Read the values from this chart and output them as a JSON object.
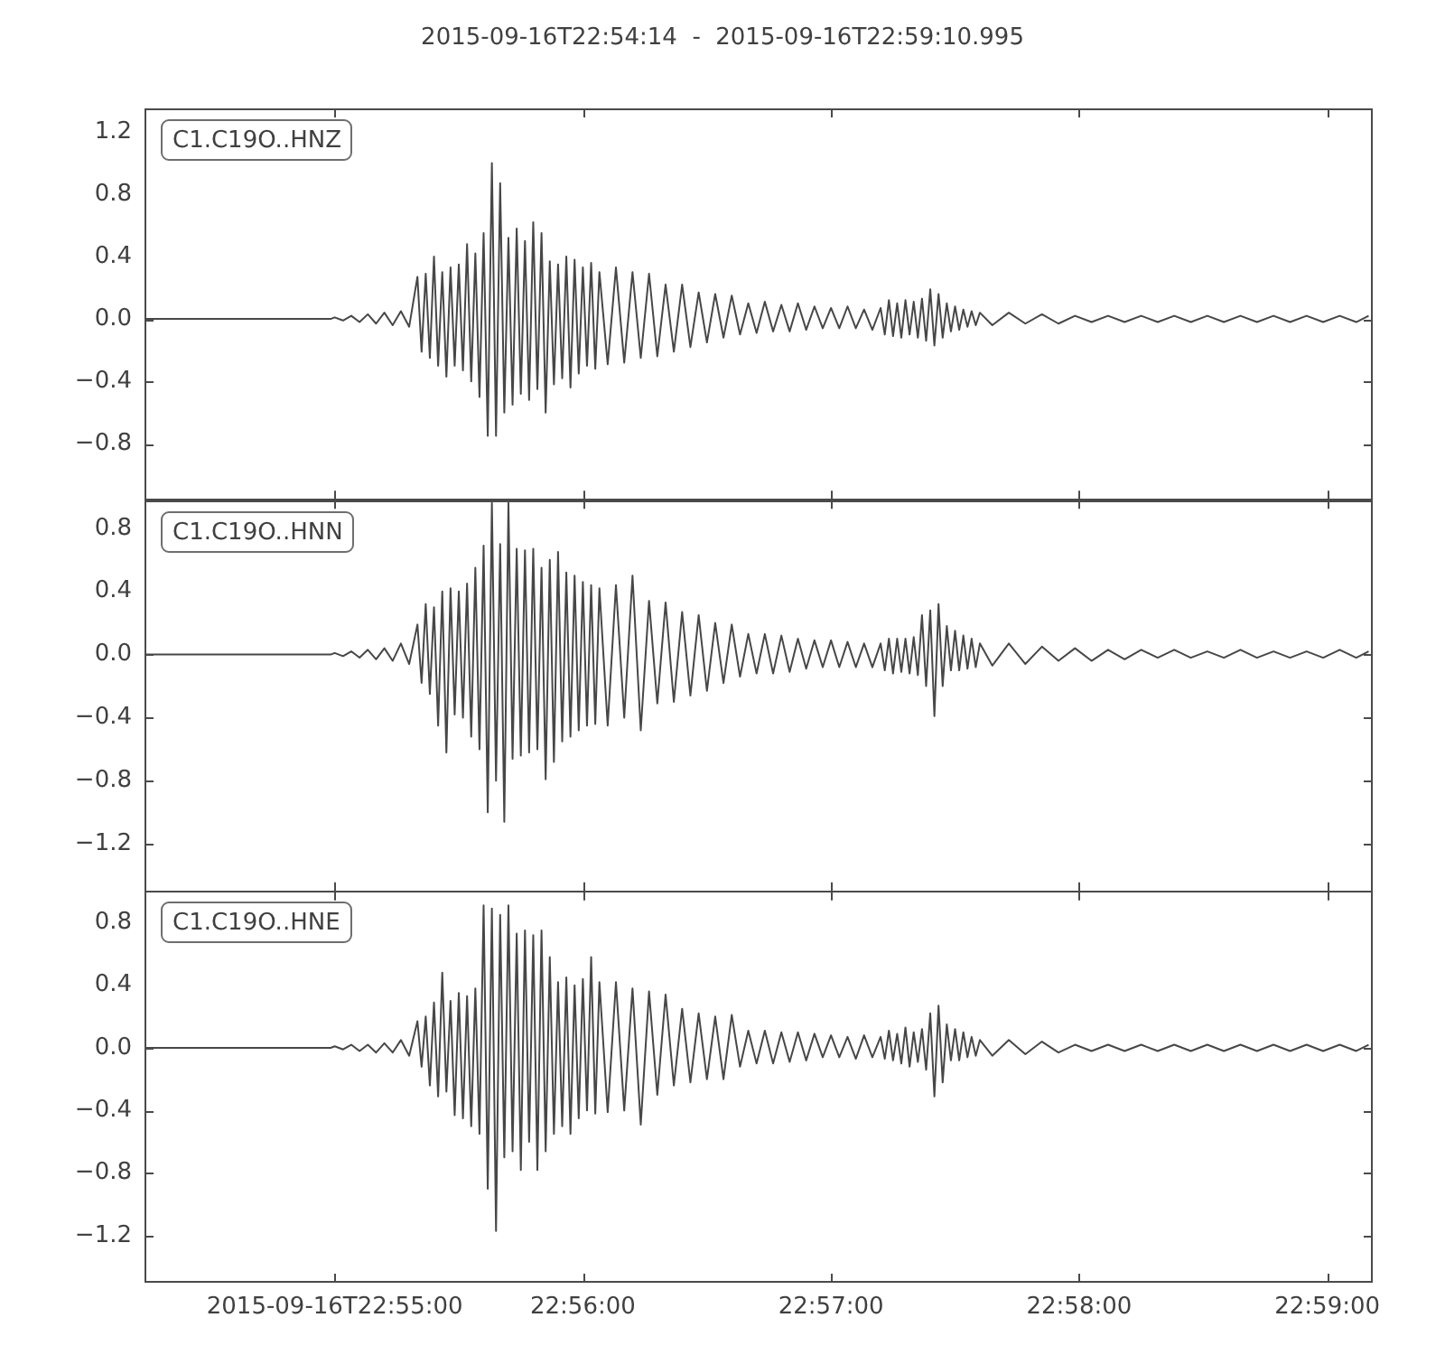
{
  "chart_data": [
    {
      "type": "line",
      "title": "2015-09-16T22:54:14  -  2015-09-16T22:59:10.995",
      "annotations": [
        "C1.C19O..HNZ"
      ],
      "color": "#474747",
      "x": [
        "2015-09-16T22:54:14",
        "2015-09-16T22:54:59",
        "2015-09-16T22:55:00",
        "2015-09-16T22:55:02",
        "2015-09-16T22:55:04",
        "2015-09-16T22:55:06",
        "2015-09-16T22:55:08",
        "2015-09-16T22:55:10",
        "2015-09-16T22:55:12",
        "2015-09-16T22:55:14",
        "2015-09-16T22:55:16",
        "2015-09-16T22:55:18",
        "2015-09-16T22:55:20",
        "2015-09-16T22:55:21",
        "2015-09-16T22:55:22",
        "2015-09-16T22:55:23",
        "2015-09-16T22:55:24",
        "2015-09-16T22:55:25",
        "2015-09-16T22:55:26",
        "2015-09-16T22:55:27",
        "2015-09-16T22:55:28",
        "2015-09-16T22:55:29",
        "2015-09-16T22:55:30",
        "2015-09-16T22:55:31",
        "2015-09-16T22:55:32",
        "2015-09-16T22:55:33",
        "2015-09-16T22:55:34",
        "2015-09-16T22:55:35",
        "2015-09-16T22:55:36",
        "2015-09-16T22:55:37",
        "2015-09-16T22:55:38",
        "2015-09-16T22:55:39",
        "2015-09-16T22:55:40",
        "2015-09-16T22:55:41",
        "2015-09-16T22:55:42",
        "2015-09-16T22:55:43",
        "2015-09-16T22:55:44",
        "2015-09-16T22:55:45",
        "2015-09-16T22:55:46",
        "2015-09-16T22:55:47",
        "2015-09-16T22:55:48",
        "2015-09-16T22:55:49",
        "2015-09-16T22:55:50",
        "2015-09-16T22:55:51",
        "2015-09-16T22:55:52",
        "2015-09-16T22:55:53",
        "2015-09-16T22:55:54",
        "2015-09-16T22:55:55",
        "2015-09-16T22:55:56",
        "2015-09-16T22:55:57",
        "2015-09-16T22:55:58",
        "2015-09-16T22:55:59",
        "2015-09-16T22:56:00",
        "2015-09-16T22:56:01",
        "2015-09-16T22:56:02",
        "2015-09-16T22:56:03",
        "2015-09-16T22:56:04",
        "2015-09-16T22:56:06",
        "2015-09-16T22:56:08",
        "2015-09-16T22:56:10",
        "2015-09-16T22:56:12",
        "2015-09-16T22:56:14",
        "2015-09-16T22:56:16",
        "2015-09-16T22:56:18",
        "2015-09-16T22:56:20",
        "2015-09-16T22:56:22",
        "2015-09-16T22:56:24",
        "2015-09-16T22:56:26",
        "2015-09-16T22:56:28",
        "2015-09-16T22:56:30",
        "2015-09-16T22:56:32",
        "2015-09-16T22:56:34",
        "2015-09-16T22:56:36",
        "2015-09-16T22:56:38",
        "2015-09-16T22:56:40",
        "2015-09-16T22:56:42",
        "2015-09-16T22:56:44",
        "2015-09-16T22:56:46",
        "2015-09-16T22:56:48",
        "2015-09-16T22:56:50",
        "2015-09-16T22:56:52",
        "2015-09-16T22:56:54",
        "2015-09-16T22:56:56",
        "2015-09-16T22:56:58",
        "2015-09-16T22:57:00",
        "2015-09-16T22:57:02",
        "2015-09-16T22:57:04",
        "2015-09-16T22:57:06",
        "2015-09-16T22:57:08",
        "2015-09-16T22:57:10",
        "2015-09-16T22:57:12",
        "2015-09-16T22:57:13",
        "2015-09-16T22:57:14",
        "2015-09-16T22:57:15",
        "2015-09-16T22:57:16",
        "2015-09-16T22:57:17",
        "2015-09-16T22:57:18",
        "2015-09-16T22:57:19",
        "2015-09-16T22:57:20",
        "2015-09-16T22:57:21",
        "2015-09-16T22:57:22",
        "2015-09-16T22:57:23",
        "2015-09-16T22:57:24",
        "2015-09-16T22:57:25",
        "2015-09-16T22:57:26",
        "2015-09-16T22:57:27",
        "2015-09-16T22:57:28",
        "2015-09-16T22:57:29",
        "2015-09-16T22:57:30",
        "2015-09-16T22:57:31",
        "2015-09-16T22:57:32",
        "2015-09-16T22:57:33",
        "2015-09-16T22:57:34",
        "2015-09-16T22:57:35",
        "2015-09-16T22:57:36",
        "2015-09-16T22:57:39",
        "2015-09-16T22:57:43",
        "2015-09-16T22:57:47",
        "2015-09-16T22:57:51",
        "2015-09-16T22:57:55",
        "2015-09-16T22:57:59",
        "2015-09-16T22:58:03",
        "2015-09-16T22:58:07",
        "2015-09-16T22:58:11",
        "2015-09-16T22:58:15",
        "2015-09-16T22:58:19",
        "2015-09-16T22:58:23",
        "2015-09-16T22:58:27",
        "2015-09-16T22:58:31",
        "2015-09-16T22:58:35",
        "2015-09-16T22:58:39",
        "2015-09-16T22:58:43",
        "2015-09-16T22:58:47",
        "2015-09-16T22:58:51",
        "2015-09-16T22:58:55",
        "2015-09-16T22:58:59",
        "2015-09-16T22:59:03",
        "2015-09-16T22:59:07",
        "2015-09-16T22:59:10"
      ],
      "values": [
        0,
        0,
        0.01,
        -0.01,
        0.02,
        -0.02,
        0.03,
        -0.03,
        0.04,
        -0.04,
        0.05,
        -0.05,
        0.27,
        -0.21,
        0.29,
        -0.25,
        0.4,
        -0.3,
        0.3,
        -0.37,
        0.33,
        -0.3,
        0.35,
        -0.33,
        0.48,
        -0.4,
        0.42,
        -0.5,
        0.55,
        -0.75,
        1.0,
        -0.75,
        0.87,
        -0.6,
        0.52,
        -0.55,
        0.58,
        -0.48,
        0.5,
        -0.52,
        0.62,
        -0.45,
        0.55,
        -0.6,
        0.37,
        -0.42,
        0.35,
        -0.38,
        0.4,
        -0.44,
        0.38,
        -0.35,
        0.33,
        -0.3,
        0.36,
        -0.32,
        0.3,
        -0.29,
        0.33,
        -0.28,
        0.3,
        -0.25,
        0.29,
        -0.24,
        0.22,
        -0.21,
        0.22,
        -0.18,
        0.17,
        -0.15,
        0.16,
        -0.12,
        0.15,
        -0.1,
        0.1,
        -0.09,
        0.11,
        -0.08,
        0.09,
        -0.08,
        0.1,
        -0.07,
        0.08,
        -0.06,
        0.07,
        -0.06,
        0.08,
        -0.06,
        0.06,
        -0.07,
        0.07,
        -0.1,
        0.12,
        -0.11,
        0.1,
        -0.12,
        0.12,
        -0.1,
        0.11,
        -0.12,
        0.13,
        -0.14,
        0.19,
        -0.17,
        0.16,
        -0.12,
        0.1,
        -0.08,
        0.08,
        -0.07,
        0.06,
        -0.05,
        0.05,
        -0.04,
        0.04,
        -0.04,
        0.04,
        -0.03,
        0.03,
        -0.03,
        0.02,
        -0.02,
        0.02,
        -0.02,
        0.02,
        -0.02,
        0.02,
        -0.02,
        0.02,
        -0.02,
        0.02,
        -0.02,
        0.02,
        -0.02,
        0.02,
        -0.02,
        0.02,
        -0.02,
        0.02
      ],
      "xlim": [
        "2015-09-16T22:54:14",
        "2015-09-16T22:59:10.995"
      ],
      "xticks": [
        {
          "value": "2015-09-16T22:55:00",
          "label": null
        },
        {
          "value": "2015-09-16T22:56:00",
          "label": null
        },
        {
          "value": "2015-09-16T22:57:00",
          "label": null
        },
        {
          "value": "2015-09-16T22:58:00",
          "label": null
        },
        {
          "value": "2015-09-16T22:59:00",
          "label": null
        }
      ],
      "ylim": [
        -1.16,
        1.35
      ],
      "yticks": [
        {
          "value": -0.8,
          "label": "−0.8"
        },
        {
          "value": -0.4,
          "label": "−0.4"
        },
        {
          "value": 0,
          "label": "0.0"
        },
        0.4,
        0.8,
        1.2
      ],
      "tick_labels": "y"
    },
    {
      "type": "line",
      "annotations": [
        "C1.C19O..HNN"
      ],
      "color": "#474747",
      "x": [
        "2015-09-16T22:54:14",
        "2015-09-16T22:54:59",
        "2015-09-16T22:55:00",
        "2015-09-16T22:55:02",
        "2015-09-16T22:55:04",
        "2015-09-16T22:55:06",
        "2015-09-16T22:55:08",
        "2015-09-16T22:55:10",
        "2015-09-16T22:55:12",
        "2015-09-16T22:55:14",
        "2015-09-16T22:55:16",
        "2015-09-16T22:55:18",
        "2015-09-16T22:55:20",
        "2015-09-16T22:55:21",
        "2015-09-16T22:55:22",
        "2015-09-16T22:55:23",
        "2015-09-16T22:55:24",
        "2015-09-16T22:55:25",
        "2015-09-16T22:55:26",
        "2015-09-16T22:55:27",
        "2015-09-16T22:55:28",
        "2015-09-16T22:55:29",
        "2015-09-16T22:55:30",
        "2015-09-16T22:55:31",
        "2015-09-16T22:55:32",
        "2015-09-16T22:55:33",
        "2015-09-16T22:55:34",
        "2015-09-16T22:55:35",
        "2015-09-16T22:55:36",
        "2015-09-16T22:55:37",
        "2015-09-16T22:55:38",
        "2015-09-16T22:55:39",
        "2015-09-16T22:55:40",
        "2015-09-16T22:55:41",
        "2015-09-16T22:55:42",
        "2015-09-16T22:55:43",
        "2015-09-16T22:55:44",
        "2015-09-16T22:55:45",
        "2015-09-16T22:55:46",
        "2015-09-16T22:55:47",
        "2015-09-16T22:55:48",
        "2015-09-16T22:55:49",
        "2015-09-16T22:55:50",
        "2015-09-16T22:55:51",
        "2015-09-16T22:55:52",
        "2015-09-16T22:55:53",
        "2015-09-16T22:55:54",
        "2015-09-16T22:55:55",
        "2015-09-16T22:55:56",
        "2015-09-16T22:55:57",
        "2015-09-16T22:55:58",
        "2015-09-16T22:55:59",
        "2015-09-16T22:56:00",
        "2015-09-16T22:56:01",
        "2015-09-16T22:56:02",
        "2015-09-16T22:56:03",
        "2015-09-16T22:56:04",
        "2015-09-16T22:56:06",
        "2015-09-16T22:56:08",
        "2015-09-16T22:56:10",
        "2015-09-16T22:56:12",
        "2015-09-16T22:56:14",
        "2015-09-16T22:56:16",
        "2015-09-16T22:56:18",
        "2015-09-16T22:56:20",
        "2015-09-16T22:56:22",
        "2015-09-16T22:56:24",
        "2015-09-16T22:56:26",
        "2015-09-16T22:56:28",
        "2015-09-16T22:56:30",
        "2015-09-16T22:56:32",
        "2015-09-16T22:56:34",
        "2015-09-16T22:56:36",
        "2015-09-16T22:56:38",
        "2015-09-16T22:56:40",
        "2015-09-16T22:56:42",
        "2015-09-16T22:56:44",
        "2015-09-16T22:56:46",
        "2015-09-16T22:56:48",
        "2015-09-16T22:56:50",
        "2015-09-16T22:56:52",
        "2015-09-16T22:56:54",
        "2015-09-16T22:56:56",
        "2015-09-16T22:56:58",
        "2015-09-16T22:57:00",
        "2015-09-16T22:57:02",
        "2015-09-16T22:57:04",
        "2015-09-16T22:57:06",
        "2015-09-16T22:57:08",
        "2015-09-16T22:57:10",
        "2015-09-16T22:57:12",
        "2015-09-16T22:57:13",
        "2015-09-16T22:57:14",
        "2015-09-16T22:57:15",
        "2015-09-16T22:57:16",
        "2015-09-16T22:57:17",
        "2015-09-16T22:57:18",
        "2015-09-16T22:57:19",
        "2015-09-16T22:57:20",
        "2015-09-16T22:57:21",
        "2015-09-16T22:57:22",
        "2015-09-16T22:57:23",
        "2015-09-16T22:57:24",
        "2015-09-16T22:57:25",
        "2015-09-16T22:57:26",
        "2015-09-16T22:57:27",
        "2015-09-16T22:57:28",
        "2015-09-16T22:57:29",
        "2015-09-16T22:57:30",
        "2015-09-16T22:57:31",
        "2015-09-16T22:57:32",
        "2015-09-16T22:57:33",
        "2015-09-16T22:57:34",
        "2015-09-16T22:57:35",
        "2015-09-16T22:57:36",
        "2015-09-16T22:57:39",
        "2015-09-16T22:57:43",
        "2015-09-16T22:57:47",
        "2015-09-16T22:57:51",
        "2015-09-16T22:57:55",
        "2015-09-16T22:57:59",
        "2015-09-16T22:58:03",
        "2015-09-16T22:58:07",
        "2015-09-16T22:58:11",
        "2015-09-16T22:58:15",
        "2015-09-16T22:58:19",
        "2015-09-16T22:58:23",
        "2015-09-16T22:58:27",
        "2015-09-16T22:58:31",
        "2015-09-16T22:58:35",
        "2015-09-16T22:58:39",
        "2015-09-16T22:58:43",
        "2015-09-16T22:58:47",
        "2015-09-16T22:58:51",
        "2015-09-16T22:58:55",
        "2015-09-16T22:58:59",
        "2015-09-16T22:59:03",
        "2015-09-16T22:59:07",
        "2015-09-16T22:59:10"
      ],
      "values": [
        0,
        0,
        0.01,
        -0.01,
        0.02,
        -0.02,
        0.03,
        -0.03,
        0.04,
        -0.04,
        0.07,
        -0.06,
        0.19,
        -0.18,
        0.32,
        -0.25,
        0.3,
        -0.45,
        0.4,
        -0.62,
        0.42,
        -0.38,
        0.4,
        -0.4,
        0.45,
        -0.52,
        0.55,
        -0.6,
        0.69,
        -1.0,
        0.96,
        -0.8,
        0.7,
        -1.06,
        0.96,
        -0.66,
        0.67,
        -0.64,
        0.66,
        -0.62,
        0.67,
        -0.6,
        0.55,
        -0.79,
        0.6,
        -0.68,
        0.65,
        -0.55,
        0.52,
        -0.52,
        0.5,
        -0.48,
        0.46,
        -0.45,
        0.44,
        -0.44,
        0.42,
        -0.45,
        0.44,
        -0.4,
        0.5,
        -0.48,
        0.34,
        -0.31,
        0.33,
        -0.3,
        0.27,
        -0.26,
        0.25,
        -0.23,
        0.2,
        -0.18,
        0.19,
        -0.14,
        0.13,
        -0.12,
        0.13,
        -0.12,
        0.12,
        -0.11,
        0.1,
        -0.09,
        0.09,
        -0.08,
        0.09,
        -0.08,
        0.08,
        -0.08,
        0.07,
        -0.08,
        0.07,
        -0.1,
        0.1,
        -0.12,
        0.1,
        -0.11,
        0.1,
        -0.12,
        0.11,
        -0.13,
        0.25,
        -0.2,
        0.28,
        -0.39,
        0.32,
        -0.2,
        0.18,
        -0.1,
        0.15,
        -0.1,
        0.12,
        -0.09,
        0.1,
        -0.08,
        0.07,
        -0.07,
        0.07,
        -0.06,
        0.05,
        -0.04,
        0.04,
        -0.04,
        0.03,
        -0.03,
        0.03,
        -0.02,
        0.03,
        -0.02,
        0.02,
        -0.02,
        0.03,
        -0.02,
        0.02,
        -0.02,
        0.02,
        -0.02,
        0.03,
        -0.02,
        0.02
      ],
      "xlim": [
        "2015-09-16T22:54:14",
        "2015-09-16T22:59:10.995"
      ],
      "xticks": [
        {
          "value": "2015-09-16T22:55:00",
          "label": null
        },
        {
          "value": "2015-09-16T22:56:00",
          "label": null
        },
        {
          "value": "2015-09-16T22:57:00",
          "label": null
        },
        {
          "value": "2015-09-16T22:58:00",
          "label": null
        },
        {
          "value": "2015-09-16T22:59:00",
          "label": null
        }
      ],
      "ylim": [
        -1.5,
        0.98
      ],
      "yticks": [
        {
          "value": -1.2,
          "label": "−1.2"
        },
        {
          "value": -0.8,
          "label": "−0.8"
        },
        {
          "value": -0.4,
          "label": "−0.4"
        },
        {
          "value": 0,
          "label": "0.0"
        },
        0.4,
        0.8
      ],
      "tick_labels": "y"
    },
    {
      "type": "line",
      "annotations": [
        "C1.C19O..HNE"
      ],
      "color": "#474747",
      "x": [
        "2015-09-16T22:54:14",
        "2015-09-16T22:54:59",
        "2015-09-16T22:55:00",
        "2015-09-16T22:55:02",
        "2015-09-16T22:55:04",
        "2015-09-16T22:55:06",
        "2015-09-16T22:55:08",
        "2015-09-16T22:55:10",
        "2015-09-16T22:55:12",
        "2015-09-16T22:55:14",
        "2015-09-16T22:55:16",
        "2015-09-16T22:55:18",
        "2015-09-16T22:55:20",
        "2015-09-16T22:55:21",
        "2015-09-16T22:55:22",
        "2015-09-16T22:55:23",
        "2015-09-16T22:55:24",
        "2015-09-16T22:55:25",
        "2015-09-16T22:55:26",
        "2015-09-16T22:55:27",
        "2015-09-16T22:55:28",
        "2015-09-16T22:55:29",
        "2015-09-16T22:55:30",
        "2015-09-16T22:55:31",
        "2015-09-16T22:55:32",
        "2015-09-16T22:55:33",
        "2015-09-16T22:55:34",
        "2015-09-16T22:55:35",
        "2015-09-16T22:55:36",
        "2015-09-16T22:55:37",
        "2015-09-16T22:55:38",
        "2015-09-16T22:55:39",
        "2015-09-16T22:55:40",
        "2015-09-16T22:55:41",
        "2015-09-16T22:55:42",
        "2015-09-16T22:55:43",
        "2015-09-16T22:55:44",
        "2015-09-16T22:55:45",
        "2015-09-16T22:55:46",
        "2015-09-16T22:55:47",
        "2015-09-16T22:55:48",
        "2015-09-16T22:55:49",
        "2015-09-16T22:55:50",
        "2015-09-16T22:55:51",
        "2015-09-16T22:55:52",
        "2015-09-16T22:55:53",
        "2015-09-16T22:55:54",
        "2015-09-16T22:55:55",
        "2015-09-16T22:55:56",
        "2015-09-16T22:55:57",
        "2015-09-16T22:55:58",
        "2015-09-16T22:55:59",
        "2015-09-16T22:56:00",
        "2015-09-16T22:56:01",
        "2015-09-16T22:56:02",
        "2015-09-16T22:56:03",
        "2015-09-16T22:56:04",
        "2015-09-16T22:56:06",
        "2015-09-16T22:56:08",
        "2015-09-16T22:56:10",
        "2015-09-16T22:56:12",
        "2015-09-16T22:56:14",
        "2015-09-16T22:56:16",
        "2015-09-16T22:56:18",
        "2015-09-16T22:56:20",
        "2015-09-16T22:56:22",
        "2015-09-16T22:56:24",
        "2015-09-16T22:56:26",
        "2015-09-16T22:56:28",
        "2015-09-16T22:56:30",
        "2015-09-16T22:56:32",
        "2015-09-16T22:56:34",
        "2015-09-16T22:56:36",
        "2015-09-16T22:56:38",
        "2015-09-16T22:56:40",
        "2015-09-16T22:56:42",
        "2015-09-16T22:56:44",
        "2015-09-16T22:56:46",
        "2015-09-16T22:56:48",
        "2015-09-16T22:56:50",
        "2015-09-16T22:56:52",
        "2015-09-16T22:56:54",
        "2015-09-16T22:56:56",
        "2015-09-16T22:56:58",
        "2015-09-16T22:57:00",
        "2015-09-16T22:57:02",
        "2015-09-16T22:57:04",
        "2015-09-16T22:57:06",
        "2015-09-16T22:57:08",
        "2015-09-16T22:57:10",
        "2015-09-16T22:57:12",
        "2015-09-16T22:57:13",
        "2015-09-16T22:57:14",
        "2015-09-16T22:57:15",
        "2015-09-16T22:57:16",
        "2015-09-16T22:57:17",
        "2015-09-16T22:57:18",
        "2015-09-16T22:57:19",
        "2015-09-16T22:57:20",
        "2015-09-16T22:57:21",
        "2015-09-16T22:57:22",
        "2015-09-16T22:57:23",
        "2015-09-16T22:57:24",
        "2015-09-16T22:57:25",
        "2015-09-16T22:57:26",
        "2015-09-16T22:57:27",
        "2015-09-16T22:57:28",
        "2015-09-16T22:57:29",
        "2015-09-16T22:57:30",
        "2015-09-16T22:57:31",
        "2015-09-16T22:57:32",
        "2015-09-16T22:57:33",
        "2015-09-16T22:57:34",
        "2015-09-16T22:57:35",
        "2015-09-16T22:57:36",
        "2015-09-16T22:57:39",
        "2015-09-16T22:57:43",
        "2015-09-16T22:57:47",
        "2015-09-16T22:57:51",
        "2015-09-16T22:57:55",
        "2015-09-16T22:57:59",
        "2015-09-16T22:58:03",
        "2015-09-16T22:58:07",
        "2015-09-16T22:58:11",
        "2015-09-16T22:58:15",
        "2015-09-16T22:58:19",
        "2015-09-16T22:58:23",
        "2015-09-16T22:58:27",
        "2015-09-16T22:58:31",
        "2015-09-16T22:58:35",
        "2015-09-16T22:58:39",
        "2015-09-16T22:58:43",
        "2015-09-16T22:58:47",
        "2015-09-16T22:58:51",
        "2015-09-16T22:58:55",
        "2015-09-16T22:58:59",
        "2015-09-16T22:59:03",
        "2015-09-16T22:59:07",
        "2015-09-16T22:59:10"
      ],
      "values": [
        0,
        0,
        0.01,
        -0.01,
        0.02,
        -0.02,
        0.02,
        -0.03,
        0.03,
        -0.03,
        0.05,
        -0.05,
        0.17,
        -0.12,
        0.2,
        -0.24,
        0.29,
        -0.31,
        0.48,
        -0.28,
        0.3,
        -0.43,
        0.35,
        -0.45,
        0.33,
        -0.5,
        0.38,
        -0.55,
        0.91,
        -0.9,
        0.89,
        -1.17,
        0.85,
        -0.7,
        0.91,
        -0.66,
        0.73,
        -0.78,
        0.75,
        -0.6,
        0.72,
        -0.78,
        0.75,
        -0.66,
        0.58,
        -0.55,
        0.42,
        -0.5,
        0.45,
        -0.55,
        0.4,
        -0.45,
        0.44,
        -0.4,
        0.58,
        -0.42,
        0.42,
        -0.41,
        0.42,
        -0.4,
        0.38,
        -0.49,
        0.36,
        -0.3,
        0.34,
        -0.24,
        0.25,
        -0.22,
        0.22,
        -0.2,
        0.2,
        -0.2,
        0.21,
        -0.12,
        0.11,
        -0.1,
        0.11,
        -0.1,
        0.1,
        -0.09,
        0.1,
        -0.08,
        0.09,
        -0.06,
        0.08,
        -0.06,
        0.07,
        -0.07,
        0.08,
        -0.06,
        0.07,
        -0.07,
        0.11,
        -0.08,
        0.09,
        -0.1,
        0.13,
        -0.12,
        0.1,
        -0.09,
        0.12,
        -0.14,
        0.22,
        -0.31,
        0.27,
        -0.22,
        0.15,
        -0.08,
        0.12,
        -0.08,
        0.1,
        -0.06,
        0.07,
        -0.05,
        0.05,
        -0.05,
        0.05,
        -0.04,
        0.04,
        -0.03,
        0.02,
        -0.02,
        0.02,
        -0.02,
        0.02,
        -0.02,
        0.02,
        -0.02,
        0.02,
        -0.02,
        0.02,
        -0.02,
        0.02,
        -0.02,
        0.02,
        -0.02,
        0.02,
        -0.02,
        0.02
      ],
      "xlim": [
        "2015-09-16T22:54:14",
        "2015-09-16T22:59:10.995"
      ],
      "xticks": [
        "2015-09-16T22:55:00",
        {
          "value": "2015-09-16T22:56:00",
          "label": "22:56:00"
        },
        {
          "value": "2015-09-16T22:57:00",
          "label": "22:57:00"
        },
        {
          "value": "2015-09-16T22:58:00",
          "label": "22:58:00"
        },
        {
          "value": "2015-09-16T22:59:00",
          "label": "22:59:00"
        }
      ],
      "ylim": [
        -1.5,
        1.0
      ],
      "yticks": [
        {
          "value": -1.2,
          "label": "−1.2"
        },
        {
          "value": -0.8,
          "label": "−0.8"
        },
        {
          "value": -0.4,
          "label": "−0.4"
        },
        {
          "value": 0,
          "label": "0.0"
        },
        0.4,
        0.8
      ]
    }
  ]
}
